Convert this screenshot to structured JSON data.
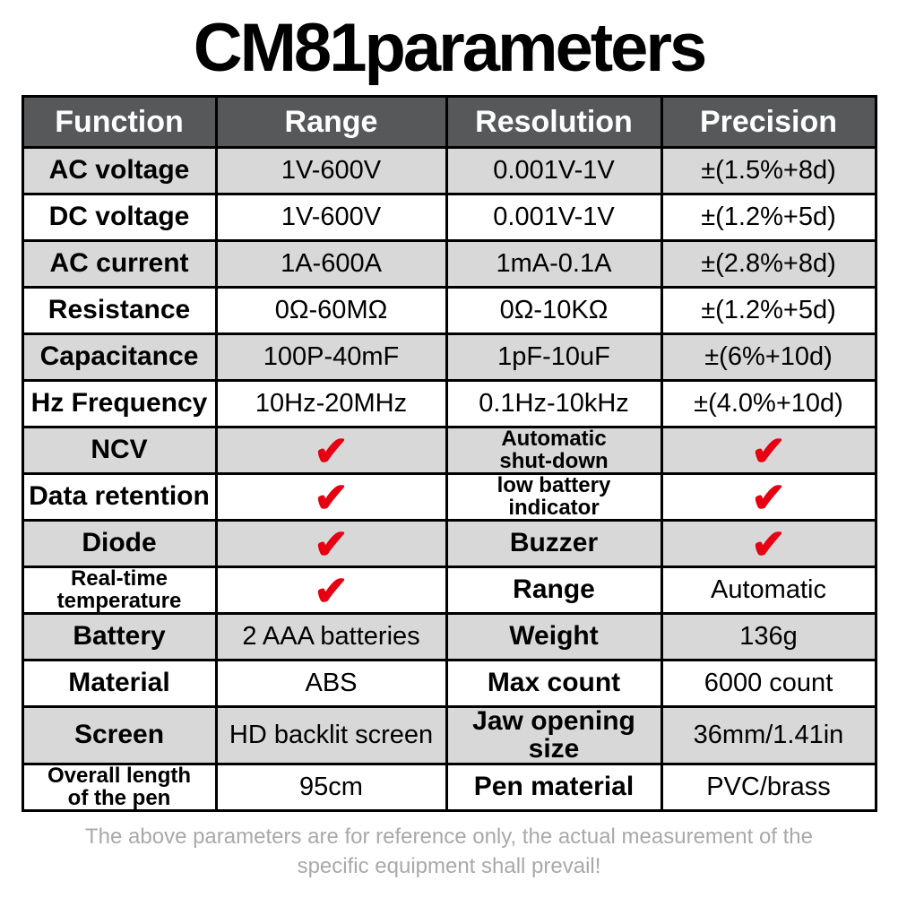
{
  "title": "CM81parameters",
  "check_glyph": "✔",
  "colors": {
    "header_bg": "#57585a",
    "header_text": "#ffffff",
    "row_alt_bg": "#d8d8d8",
    "row_bg": "#ffffff",
    "border": "#000000",
    "check_red": "#e60012",
    "footer_gray": "#a9a9a9"
  },
  "table": {
    "headers": [
      "Function",
      "Range",
      "Resolution",
      "Precision"
    ],
    "rows": [
      {
        "cells": [
          {
            "kind": "label",
            "text": "AC voltage"
          },
          {
            "kind": "value",
            "text": "1V-600V"
          },
          {
            "kind": "value",
            "text": "0.001V-1V"
          },
          {
            "kind": "value",
            "text": "±(1.5%+8d)"
          }
        ]
      },
      {
        "cells": [
          {
            "kind": "label",
            "text": "DC voltage"
          },
          {
            "kind": "value",
            "text": "1V-600V"
          },
          {
            "kind": "value",
            "text": "0.001V-1V"
          },
          {
            "kind": "value",
            "text": "±(1.2%+5d)"
          }
        ]
      },
      {
        "cells": [
          {
            "kind": "label",
            "text": "AC current"
          },
          {
            "kind": "value",
            "text": "1A-600A"
          },
          {
            "kind": "value",
            "text": "1mA-0.1A"
          },
          {
            "kind": "value",
            "text": "±(2.8%+8d)"
          }
        ]
      },
      {
        "cells": [
          {
            "kind": "label",
            "text": "Resistance"
          },
          {
            "kind": "value",
            "text": "0Ω-60MΩ"
          },
          {
            "kind": "value",
            "text": "0Ω-10KΩ"
          },
          {
            "kind": "value",
            "text": "±(1.2%+5d)"
          }
        ]
      },
      {
        "cells": [
          {
            "kind": "label",
            "text": "Capacitance"
          },
          {
            "kind": "value",
            "text": "100P-40mF"
          },
          {
            "kind": "value",
            "text": "1pF-10uF"
          },
          {
            "kind": "value",
            "text": "±(6%+10d)"
          }
        ]
      },
      {
        "cells": [
          {
            "kind": "label",
            "text": "Hz Frequency"
          },
          {
            "kind": "value",
            "text": "10Hz-20MHz"
          },
          {
            "kind": "value",
            "text": "0.1Hz-10kHz"
          },
          {
            "kind": "value",
            "text": "±(4.0%+10d)"
          }
        ]
      },
      {
        "cells": [
          {
            "kind": "label",
            "text": "NCV"
          },
          {
            "kind": "check"
          },
          {
            "kind": "label",
            "small": true,
            "text": "Automatic\nshut-down"
          },
          {
            "kind": "check"
          }
        ]
      },
      {
        "cells": [
          {
            "kind": "label",
            "text": "Data retention"
          },
          {
            "kind": "check"
          },
          {
            "kind": "label",
            "small": true,
            "text": "low battery\nindicator"
          },
          {
            "kind": "check"
          }
        ]
      },
      {
        "cells": [
          {
            "kind": "label",
            "text": "Diode"
          },
          {
            "kind": "check"
          },
          {
            "kind": "label",
            "text": "Buzzer"
          },
          {
            "kind": "check"
          }
        ]
      },
      {
        "cells": [
          {
            "kind": "label",
            "small": true,
            "text": "Real-time\ntemperature"
          },
          {
            "kind": "check"
          },
          {
            "kind": "label",
            "text": "Range"
          },
          {
            "kind": "value",
            "text": "Automatic"
          }
        ]
      },
      {
        "cells": [
          {
            "kind": "label",
            "text": "Battery"
          },
          {
            "kind": "value",
            "text": "2 AAA batteries"
          },
          {
            "kind": "label",
            "text": "Weight"
          },
          {
            "kind": "value",
            "text": "136g"
          }
        ]
      },
      {
        "cells": [
          {
            "kind": "label",
            "text": "Material"
          },
          {
            "kind": "value",
            "text": "ABS"
          },
          {
            "kind": "label",
            "text": "Max count"
          },
          {
            "kind": "value",
            "text": "6000 count"
          }
        ]
      },
      {
        "cells": [
          {
            "kind": "label",
            "text": "Screen"
          },
          {
            "kind": "value",
            "text": "HD backlit screen"
          },
          {
            "kind": "label",
            "text": "Jaw opening size"
          },
          {
            "kind": "value",
            "text": "36mm/1.41in"
          }
        ]
      },
      {
        "cells": [
          {
            "kind": "label",
            "small": true,
            "text": "Overall length\nof the pen"
          },
          {
            "kind": "value",
            "text": "95cm"
          },
          {
            "kind": "label",
            "text": "Pen material"
          },
          {
            "kind": "value",
            "text": "PVC/brass"
          }
        ]
      }
    ]
  },
  "footer": {
    "line1": "The above parameters are for reference only, the actual measurement of the",
    "line2": "specific equipment shall prevail!"
  }
}
